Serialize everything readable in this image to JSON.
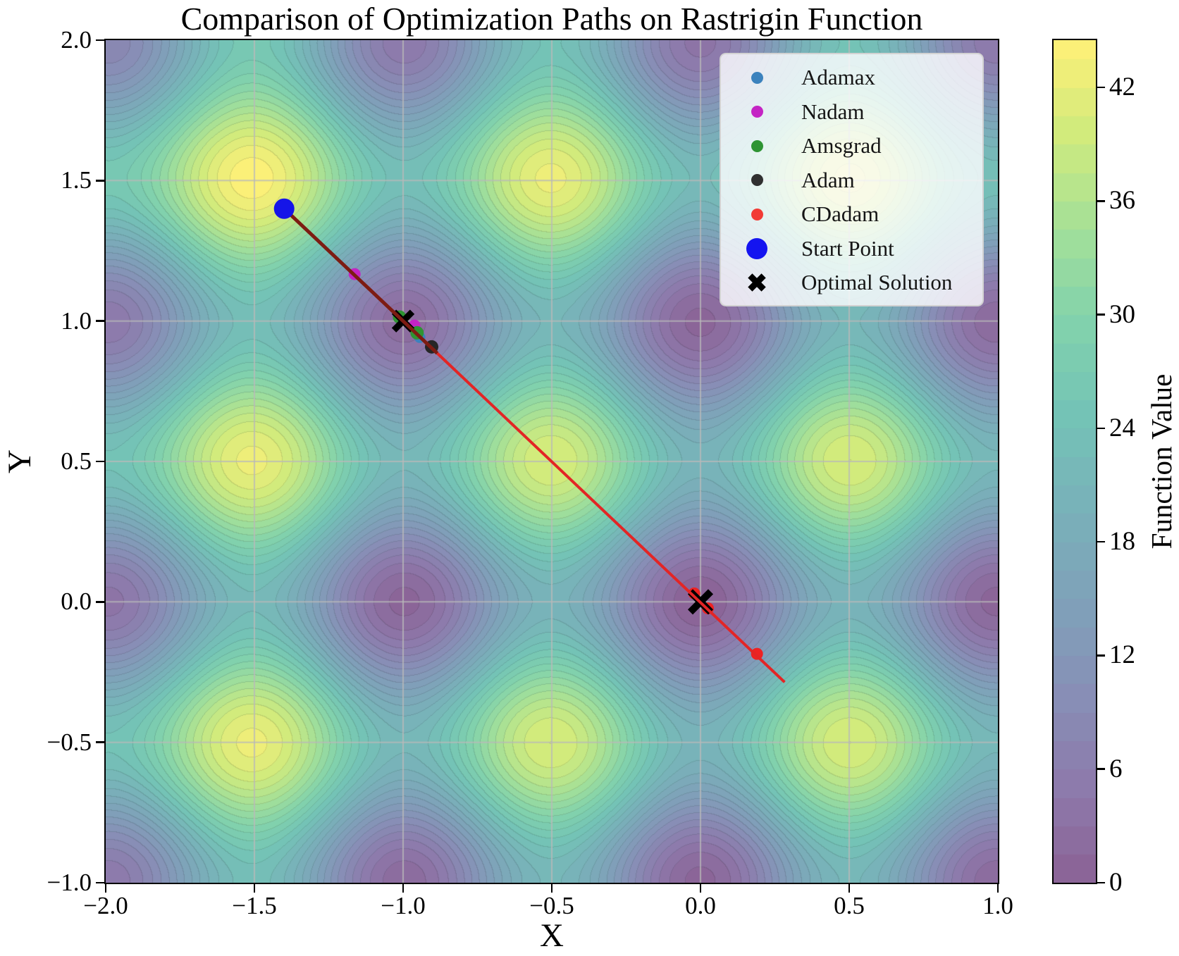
{
  "title": "Comparison of Optimization Paths on Rastrigin Function",
  "axes": {
    "x_label": "X",
    "y_label": "Y",
    "x_ticks": [
      {
        "v": -2.0,
        "label": "−2.0"
      },
      {
        "v": -1.5,
        "label": "−1.5"
      },
      {
        "v": -1.0,
        "label": "−1.0"
      },
      {
        "v": -0.5,
        "label": "−0.5"
      },
      {
        "v": 0.0,
        "label": "0.0"
      },
      {
        "v": 0.5,
        "label": "0.5"
      },
      {
        "v": 1.0,
        "label": "1.0"
      }
    ],
    "y_ticks": [
      {
        "v": 2.0,
        "label": "2.0"
      },
      {
        "v": 1.5,
        "label": "1.5"
      },
      {
        "v": 1.0,
        "label": "1.0"
      },
      {
        "v": 0.5,
        "label": "0.5"
      },
      {
        "v": 0.0,
        "label": "0.0"
      },
      {
        "v": -0.5,
        "label": "−0.5"
      },
      {
        "v": -1.0,
        "label": "−1.0"
      }
    ]
  },
  "colorbar": {
    "label": "Function Value",
    "vmin": 0,
    "vmax": 44.5,
    "ticks": [
      {
        "v": 0,
        "label": "0"
      },
      {
        "v": 6,
        "label": "6"
      },
      {
        "v": 12,
        "label": "12"
      },
      {
        "v": 18,
        "label": "18"
      },
      {
        "v": 24,
        "label": "24"
      },
      {
        "v": 30,
        "label": "30"
      },
      {
        "v": 36,
        "label": "36"
      },
      {
        "v": 42,
        "label": "42"
      }
    ]
  },
  "legend": {
    "items": [
      {
        "label": "Adamax",
        "marker": "circle",
        "color": "#3b82bd",
        "size": 17
      },
      {
        "label": "Nadam",
        "marker": "circle",
        "color": "#c424c4",
        "size": 17
      },
      {
        "label": "Amsgrad",
        "marker": "circle",
        "color": "#2e9433",
        "size": 17
      },
      {
        "label": "Adam",
        "marker": "circle",
        "color": "#303030",
        "size": 17
      },
      {
        "label": "CDadam",
        "marker": "circle",
        "color": "#f23b35",
        "size": 17
      },
      {
        "label": "Start Point",
        "marker": "circle",
        "color": "#1414f0",
        "size": 30
      },
      {
        "label": "Optimal Solution",
        "marker": "x",
        "color": "#000000",
        "size": 28
      }
    ]
  },
  "chart_data": {
    "type": "contour",
    "title": "Comparison of Optimization Paths on Rastrigin Function",
    "function": "Rastrigin f(x,y) = 20 + x^2 + y^2 - 10cos(2*pi*x) - 10cos(2*pi*y)",
    "x_range": [
      -2,
      1
    ],
    "y_range": [
      -1,
      2
    ],
    "colormap": "viridis",
    "fill_alpha": 0.62,
    "contour": {
      "vmin": 0,
      "vmax": 44.5,
      "level_step": 1.5
    },
    "grid": {
      "show": true,
      "spacing": 0.5,
      "color": "#b9b9b9"
    },
    "scatter": [
      {
        "name": "nadam-point",
        "shape": "circle",
        "x": -1.163,
        "y": 1.167,
        "color": "#c424c4",
        "size": 17
      },
      {
        "name": "amsgrad-point",
        "shape": "circle",
        "x": -1.012,
        "y": 1.014,
        "color": "#2e9433",
        "size": 19
      },
      {
        "name": "nadam-point",
        "shape": "circle",
        "x": -0.962,
        "y": 0.984,
        "color": "#c424c4",
        "size": 17
      },
      {
        "name": "adamax-point",
        "shape": "circle",
        "x": -0.944,
        "y": 0.942,
        "color": "#3b82bd",
        "size": 16
      },
      {
        "name": "amsgrad-point",
        "shape": "circle",
        "x": -0.953,
        "y": 0.958,
        "color": "#2e9433",
        "size": 19
      },
      {
        "name": "adam-point",
        "shape": "circle",
        "x": -0.904,
        "y": 0.908,
        "color": "#262626",
        "size": 19
      },
      {
        "name": "cdadam-point",
        "shape": "circle",
        "x": -0.021,
        "y": 0.03,
        "color": "#ee2222",
        "size": 17
      },
      {
        "name": "cdadam-point",
        "shape": "circle",
        "x": 0.025,
        "y": -0.023,
        "color": "#ee2222",
        "size": 17
      },
      {
        "name": "cdadam-point",
        "shape": "circle",
        "x": 0.19,
        "y": -0.185,
        "color": "#ee2222",
        "size": 17
      },
      {
        "name": "optimal-solution-x",
        "shape": "x",
        "x": -1.0,
        "y": 1.0,
        "color": "#000000",
        "size": 26,
        "stroke": 9
      },
      {
        "name": "optimal-solution-x",
        "shape": "x",
        "x": 0.0,
        "y": 0.0,
        "color": "#000000",
        "size": 29,
        "stroke": 10
      },
      {
        "name": "start-point",
        "shape": "circle",
        "x": -1.4,
        "y": 1.4,
        "color": "#1515e8",
        "size": 29
      }
    ],
    "path_segments": [
      {
        "name": "shared-path-segment",
        "x1": -1.4,
        "y1": 1.4,
        "x2": -0.885,
        "y2": 0.885,
        "color": "#7d1c12",
        "width": 5
      },
      {
        "name": "cdadam-path-segment",
        "x1": -0.885,
        "y1": 0.885,
        "x2": 0.283,
        "y2": -0.286,
        "color": "#e32525",
        "width": 4
      }
    ]
  }
}
